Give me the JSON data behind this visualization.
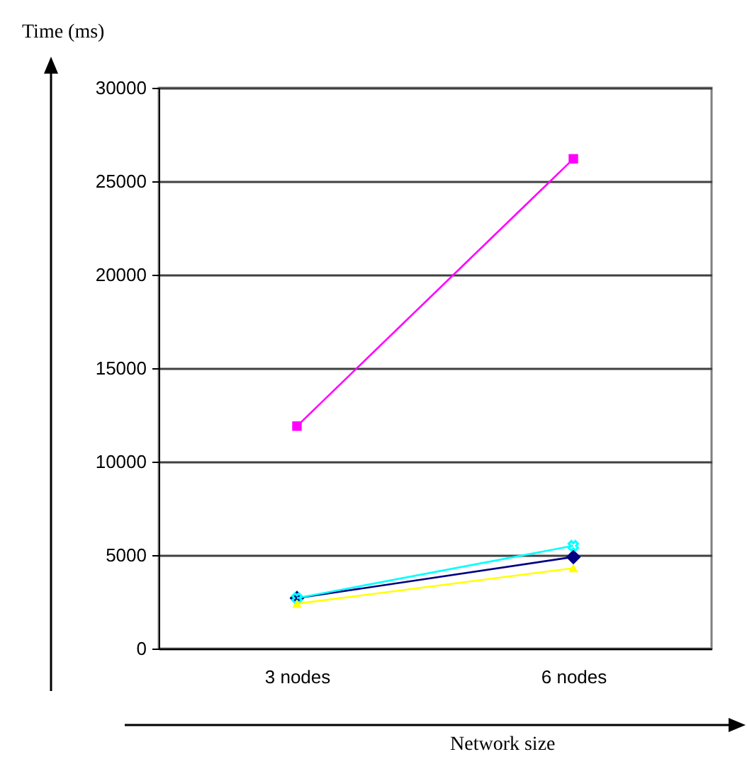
{
  "chart_data": {
    "type": "line",
    "xlabel": "Network size",
    "ylabel": "Time (ms)",
    "categories": [
      "3 nodes",
      "6 nodes"
    ],
    "series": [
      {
        "color": "#ff00ff",
        "marker": "square",
        "values": [
          11900,
          26200
        ]
      },
      {
        "color": "#000080",
        "marker": "diamond",
        "values": [
          2700,
          4900
        ]
      },
      {
        "color": "#00ffff",
        "marker": "cross",
        "values": [
          2700,
          5500
        ]
      },
      {
        "color": "#ffff00",
        "marker": "triangle",
        "values": [
          2400,
          4300
        ]
      }
    ],
    "ylim": [
      0,
      30000
    ],
    "yticks": [
      0,
      5000,
      10000,
      15000,
      20000,
      25000,
      30000
    ],
    "grid": "y"
  }
}
